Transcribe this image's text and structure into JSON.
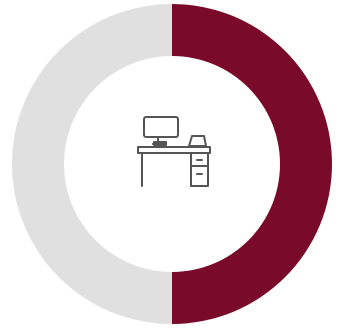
{
  "chart_data": {
    "type": "pie",
    "variant": "donut",
    "start_angle": "top",
    "direction": "clockwise",
    "values": [
      50,
      50
    ],
    "colors": [
      "#7a0a2a",
      "#e0e0e0"
    ],
    "title": "",
    "center_icon": "office-desk-computer-icon"
  },
  "colors": {
    "highlight": "#7a0a2a",
    "remainder": "#e0e0e0",
    "icon_stroke": "#555555",
    "background": "#ffffff"
  }
}
